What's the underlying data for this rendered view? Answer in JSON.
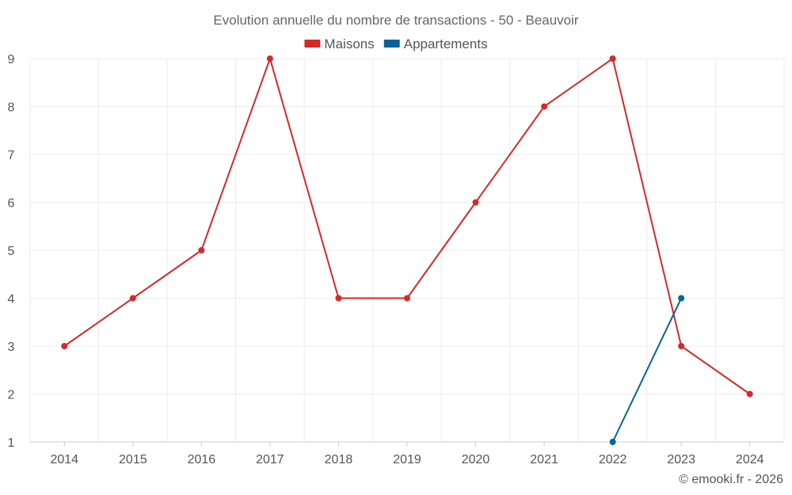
{
  "chart_data": {
    "type": "line",
    "title": "Evolution annuelle du nombre de transactions - 50 - Beauvoir",
    "categories": [
      "2014",
      "2015",
      "2016",
      "2017",
      "2018",
      "2019",
      "2020",
      "2021",
      "2022",
      "2023",
      "2024"
    ],
    "ylim": [
      1,
      9
    ],
    "yticks": [
      "1",
      "2",
      "3",
      "4",
      "5",
      "6",
      "7",
      "8",
      "9"
    ],
    "grid": true,
    "legend_position": "top-center",
    "series": [
      {
        "name": "Maisons",
        "color": "#d32a2a",
        "values": [
          3,
          4,
          5,
          9,
          4,
          4,
          6,
          8,
          9,
          3,
          2
        ]
      },
      {
        "name": "Appartements",
        "color": "#0a6296",
        "values": [
          null,
          null,
          null,
          null,
          null,
          null,
          null,
          null,
          1,
          4,
          null
        ]
      }
    ]
  },
  "credit": "© emooki.fr - 2026"
}
